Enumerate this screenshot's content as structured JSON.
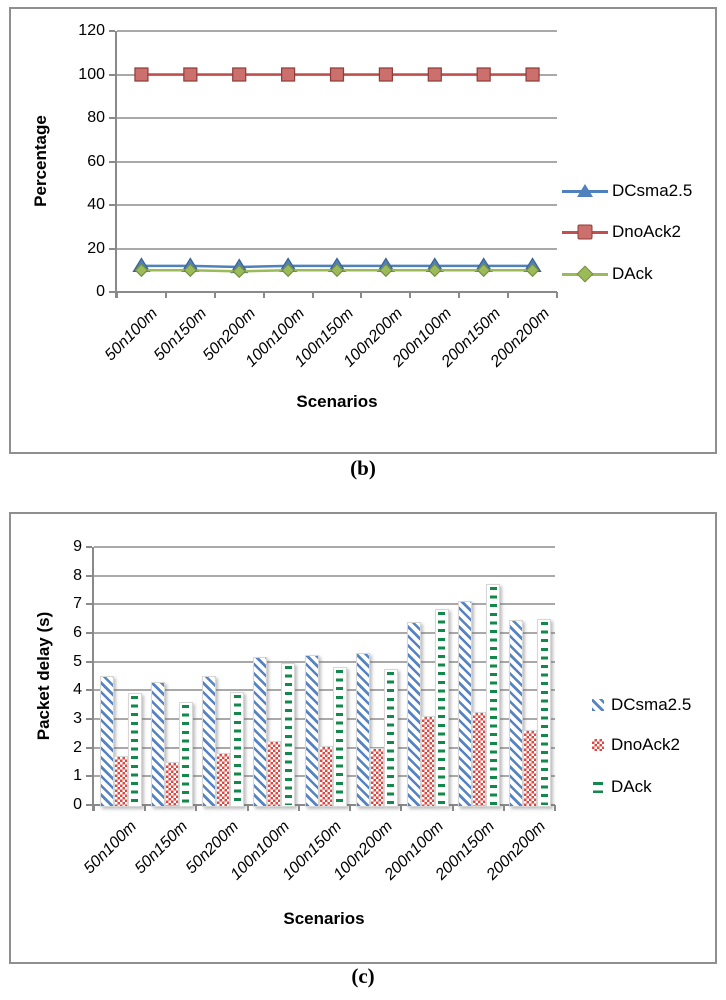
{
  "page": {
    "caption_b": "(b)",
    "caption_c": "(c)"
  },
  "chart_data": [
    {
      "panel": "b",
      "type": "line",
      "title": "",
      "xlabel": "Scenarios",
      "ylabel": "Percentage",
      "categories": [
        "50n100m",
        "50n150m",
        "50n200m",
        "100n100m",
        "100n150m",
        "100n200m",
        "200n100m",
        "200n150m",
        "200n200m"
      ],
      "ylim": [
        0,
        120
      ],
      "ytick_step": 20,
      "ytick_labels": [
        "0",
        "20",
        "40",
        "60",
        "80",
        "100",
        "120"
      ],
      "grid": true,
      "legend_position": "right",
      "series": [
        {
          "name": "DCsma2.5",
          "marker": "triangle",
          "color": "#4F81BD",
          "values": [
            12,
            12,
            11.5,
            12,
            12,
            12,
            12,
            12,
            12
          ]
        },
        {
          "name": "DnoAck2",
          "marker": "square",
          "color": "#C0504D",
          "values": [
            100,
            100,
            100,
            100,
            100,
            100,
            100,
            100,
            100
          ]
        },
        {
          "name": "DAck",
          "marker": "diamond",
          "color": "#9BBB59",
          "values": [
            10,
            10,
            9.5,
            10,
            10,
            10,
            10,
            10,
            10
          ]
        }
      ]
    },
    {
      "panel": "c",
      "type": "bar",
      "title": "",
      "xlabel": "Scenarios",
      "ylabel": "Packet delay (s)",
      "categories": [
        "50n100m",
        "50n150m",
        "50n200m",
        "100n100m",
        "100n150m",
        "100n200m",
        "200n100m",
        "200n150m",
        "200n200m"
      ],
      "ylim": [
        0,
        9
      ],
      "ytick_step": 1,
      "ytick_labels": [
        "0",
        "1",
        "2",
        "3",
        "4",
        "5",
        "6",
        "7",
        "8",
        "9"
      ],
      "grid": true,
      "legend_position": "right",
      "series": [
        {
          "name": "DCsma2.5",
          "pattern": "diagonal-stripes",
          "color": "#5583C3",
          "values": [
            4.5,
            4.3,
            4.5,
            5.15,
            5.25,
            5.3,
            6.4,
            7.1,
            6.45
          ]
        },
        {
          "name": "DnoAck2",
          "pattern": "dotted-grid",
          "color": "#DC4842",
          "values": [
            1.7,
            1.5,
            1.8,
            2.25,
            2.05,
            2.0,
            3.1,
            3.25,
            2.6
          ]
        },
        {
          "name": "DAck",
          "pattern": "horizontal-dashes",
          "color": "#12894A",
          "values": [
            3.9,
            3.6,
            3.95,
            4.95,
            4.8,
            4.75,
            6.85,
            7.7,
            6.5
          ]
        }
      ]
    }
  ]
}
